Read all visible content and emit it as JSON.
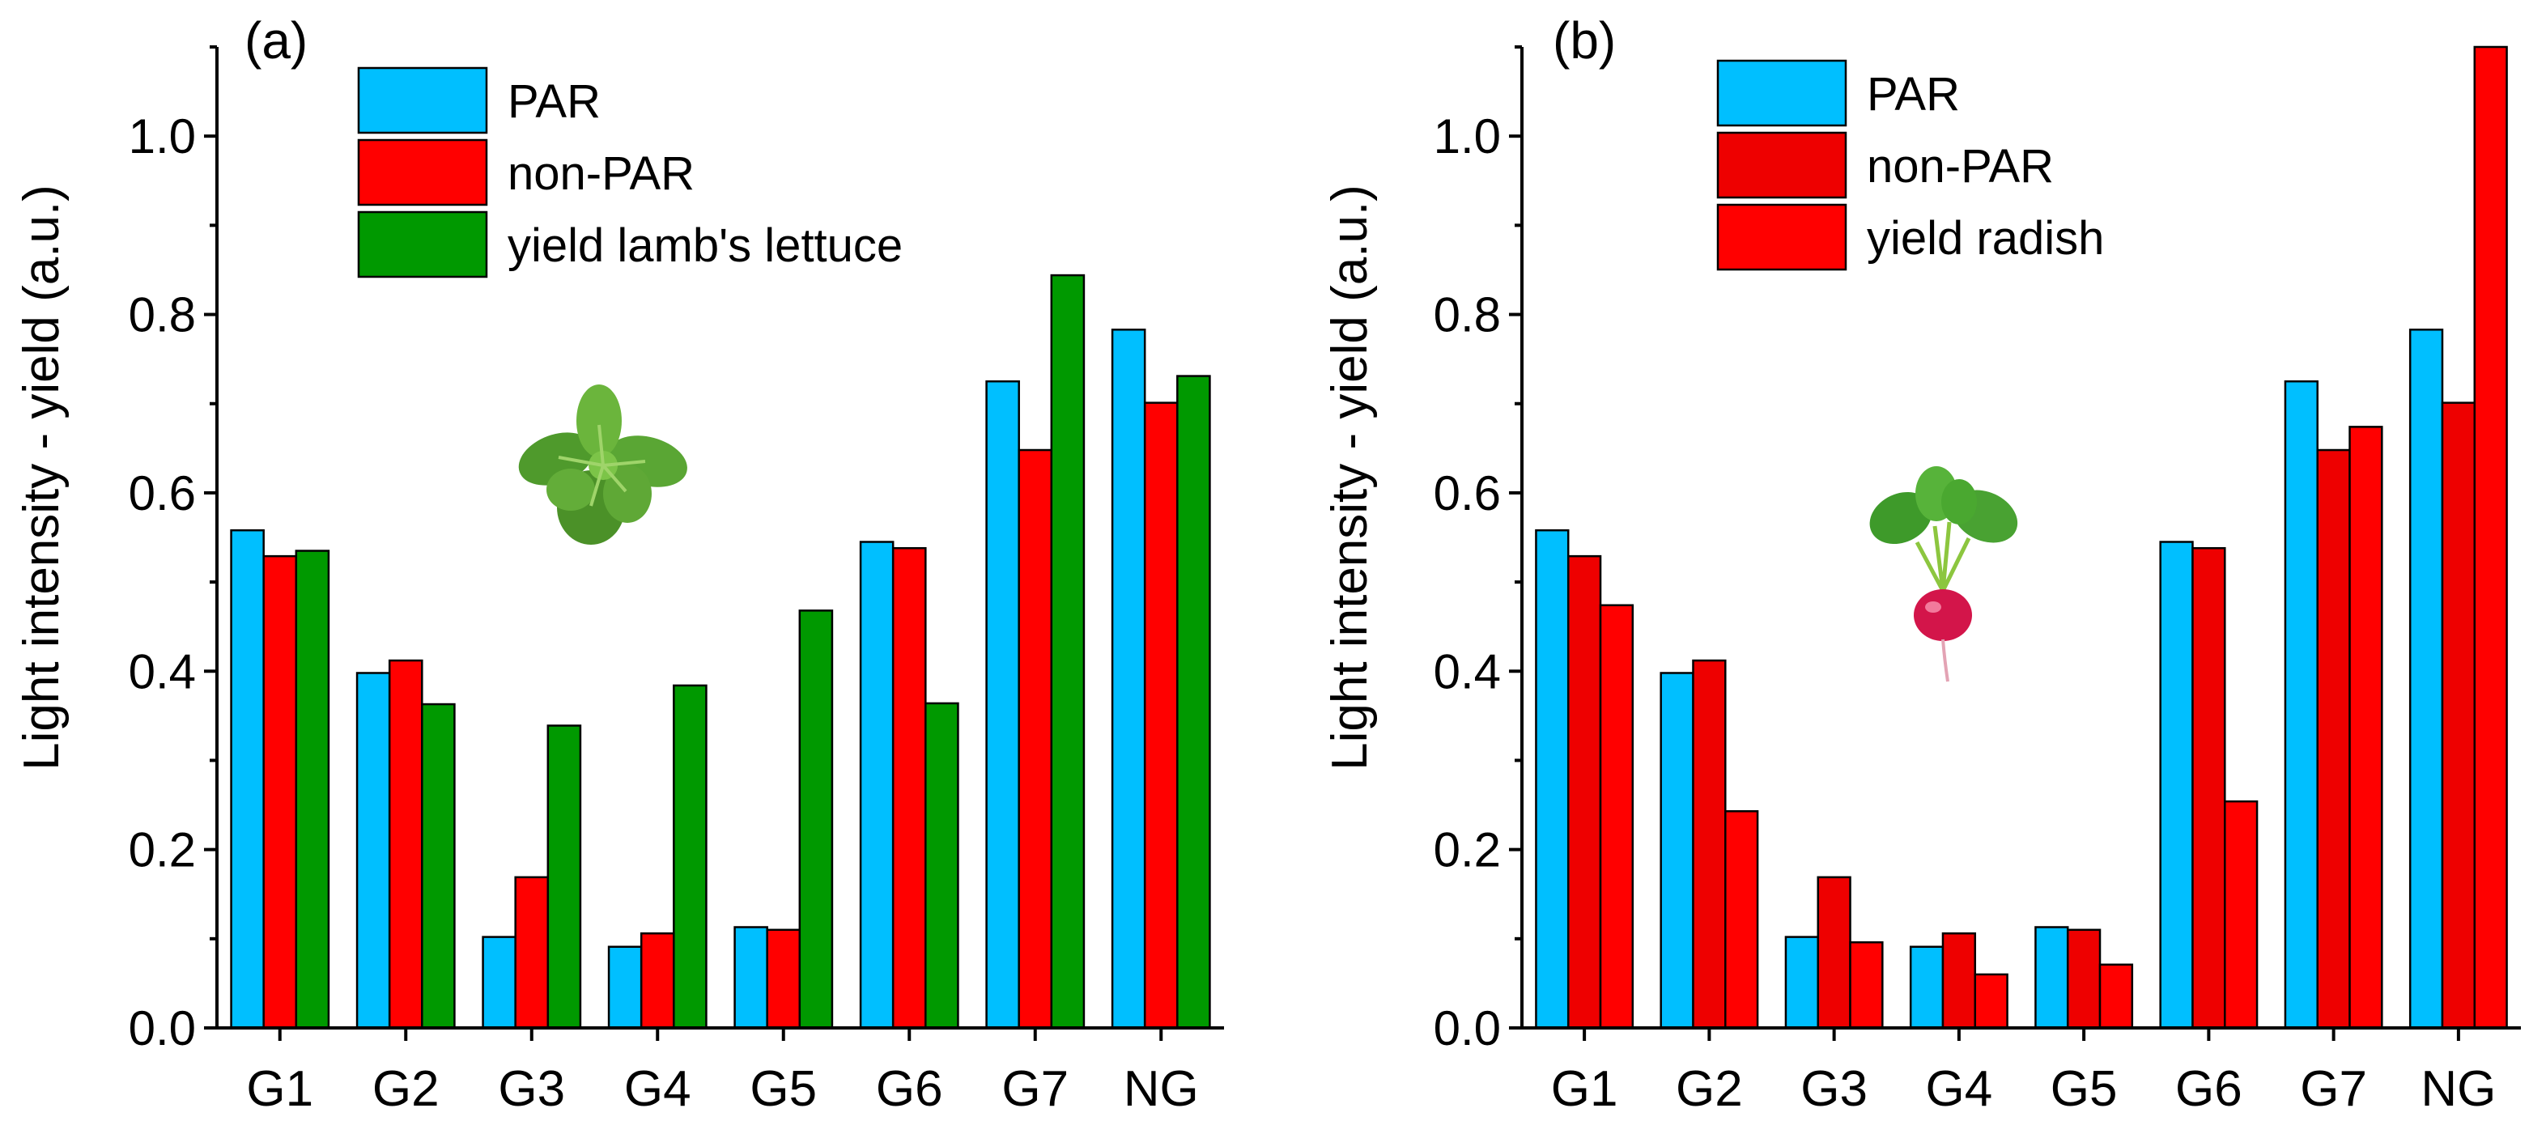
{
  "figure": {
    "panels": [
      "(a)",
      "(b)"
    ]
  },
  "chart_data": [
    {
      "type": "bar",
      "panel_label": "(a)",
      "categories": [
        "G1",
        "G2",
        "G3",
        "G4",
        "G5",
        "G6",
        "G7",
        "NG"
      ],
      "ylabel": "Light intensity - yield (a.u.)",
      "xlabel": "",
      "ylim": [
        0,
        1.1
      ],
      "yticks": [
        "0.0",
        "0.2",
        "0.4",
        "0.6",
        "0.8",
        "1.0"
      ],
      "legend_position": "top-right",
      "grid": false,
      "series": [
        {
          "name": "PAR",
          "color": "#00bfff",
          "values": [
            0.558,
            0.398,
            0.102,
            0.091,
            0.113,
            0.545,
            0.725,
            0.783
          ]
        },
        {
          "name": "non-PAR",
          "color": "#ff0000",
          "values": [
            0.529,
            0.412,
            0.169,
            0.106,
            0.11,
            0.538,
            0.648,
            0.701
          ]
        },
        {
          "name": "yield lamb's lettuce",
          "color": "#009900",
          "values": [
            0.535,
            0.363,
            0.339,
            0.384,
            0.468,
            0.364,
            0.844,
            0.731
          ]
        }
      ],
      "icon": "lettuce-icon"
    },
    {
      "type": "bar",
      "panel_label": "(b)",
      "categories": [
        "G1",
        "G2",
        "G3",
        "G4",
        "G5",
        "G6",
        "G7",
        "NG"
      ],
      "ylabel": "Light intensity - yield (a.u.)",
      "xlabel": "",
      "ylim": [
        0,
        1.1
      ],
      "yticks": [
        "0.0",
        "0.2",
        "0.4",
        "0.6",
        "0.8",
        "1.0"
      ],
      "legend_position": "top-right",
      "grid": false,
      "series": [
        {
          "name": "PAR",
          "color": "#00bfff",
          "values": [
            0.558,
            0.398,
            0.102,
            0.091,
            0.113,
            0.545,
            0.725,
            0.783
          ]
        },
        {
          "name": "non-PAR",
          "color": "#ee0000",
          "values": [
            0.529,
            0.412,
            0.169,
            0.106,
            0.11,
            0.538,
            0.648,
            0.701
          ]
        },
        {
          "name": "yield radish",
          "color": "#ff0000",
          "values": [
            0.474,
            0.243,
            0.096,
            0.06,
            0.071,
            0.254,
            0.674,
            1.1
          ]
        }
      ],
      "icon": "radish-icon"
    }
  ]
}
